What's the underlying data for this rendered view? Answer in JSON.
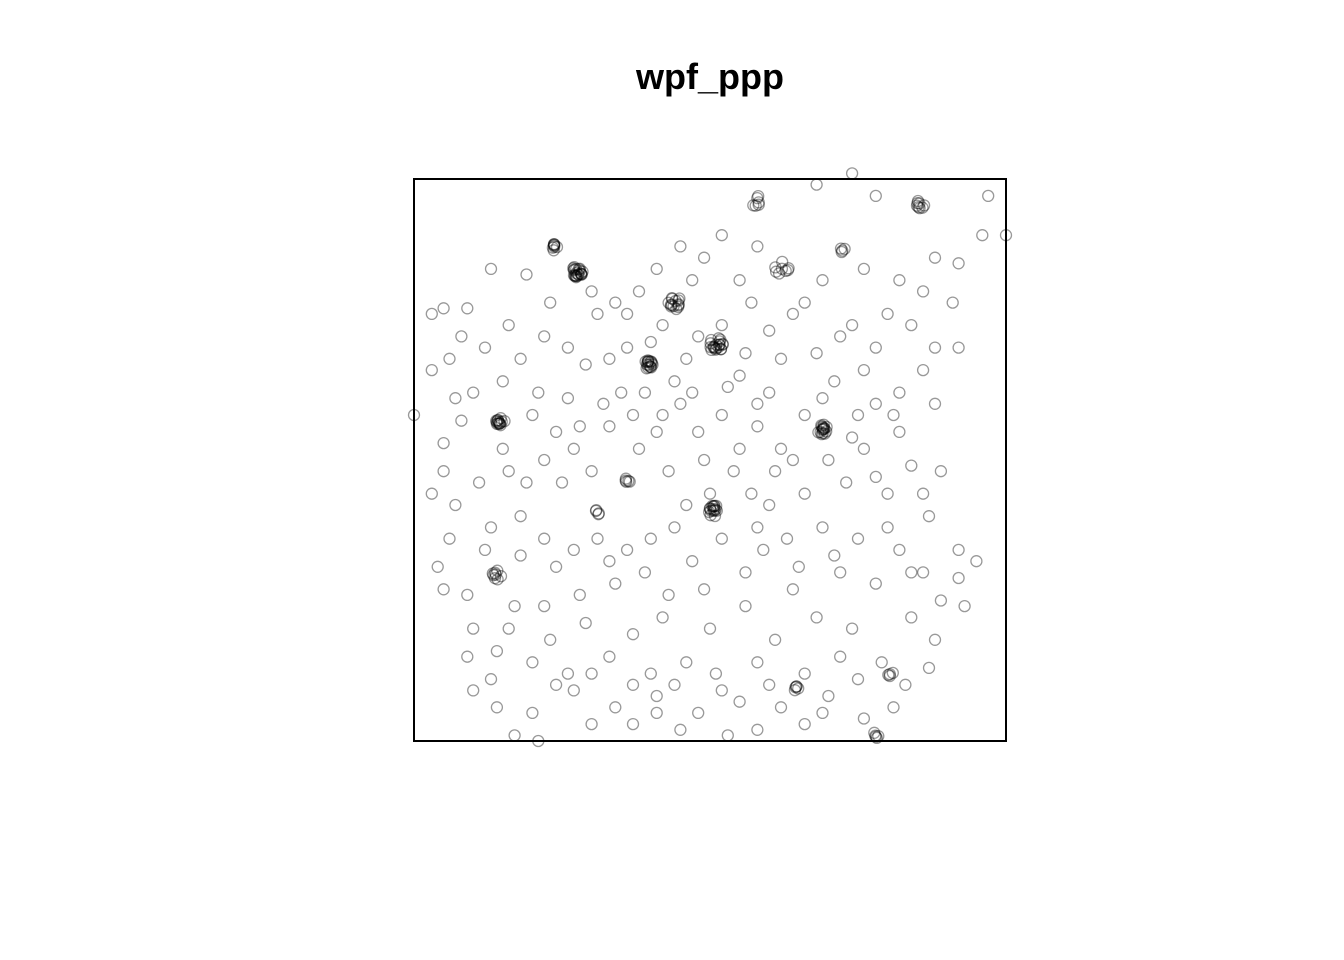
{
  "title": "wpf_ppp",
  "chart_data": {
    "type": "scatter",
    "title": "wpf_ppp",
    "xlabel": "",
    "ylabel": "",
    "window": {
      "xrange": [
        0,
        1
      ],
      "yrange": [
        0,
        1
      ]
    },
    "axes": false,
    "grid": false,
    "legend": "none",
    "marker": "open-circle",
    "marker_color": "#000000",
    "marker_opacity": 0.4,
    "clusters": [
      {
        "x": 0.275,
        "y": 0.835,
        "n": 22,
        "s": 0.01
      },
      {
        "x": 0.24,
        "y": 0.88,
        "n": 8,
        "s": 0.008
      },
      {
        "x": 0.44,
        "y": 0.78,
        "n": 14,
        "s": 0.012
      },
      {
        "x": 0.51,
        "y": 0.705,
        "n": 20,
        "s": 0.012
      },
      {
        "x": 0.395,
        "y": 0.67,
        "n": 16,
        "s": 0.008
      },
      {
        "x": 0.145,
        "y": 0.57,
        "n": 14,
        "s": 0.008
      },
      {
        "x": 0.69,
        "y": 0.555,
        "n": 16,
        "s": 0.009
      },
      {
        "x": 0.505,
        "y": 0.41,
        "n": 16,
        "s": 0.01
      },
      {
        "x": 0.14,
        "y": 0.295,
        "n": 8,
        "s": 0.008
      },
      {
        "x": 0.855,
        "y": 0.955,
        "n": 8,
        "s": 0.007
      },
      {
        "x": 0.62,
        "y": 0.845,
        "n": 8,
        "s": 0.015
      },
      {
        "x": 0.36,
        "y": 0.465,
        "n": 5,
        "s": 0.006
      },
      {
        "x": 0.31,
        "y": 0.405,
        "n": 4,
        "s": 0.006
      },
      {
        "x": 0.645,
        "y": 0.095,
        "n": 5,
        "s": 0.005
      },
      {
        "x": 0.78,
        "y": 0.01,
        "n": 5,
        "s": 0.006
      },
      {
        "x": 0.805,
        "y": 0.12,
        "n": 4,
        "s": 0.005
      },
      {
        "x": 0.58,
        "y": 0.96,
        "n": 6,
        "s": 0.012
      },
      {
        "x": 0.72,
        "y": 0.88,
        "n": 4,
        "s": 0.012
      }
    ],
    "background_points": [
      [
        0.05,
        0.77
      ],
      [
        0.09,
        0.77
      ],
      [
        0.16,
        0.74
      ],
      [
        0.23,
        0.78
      ],
      [
        0.31,
        0.76
      ],
      [
        0.36,
        0.76
      ],
      [
        0.06,
        0.68
      ],
      [
        0.12,
        0.7
      ],
      [
        0.18,
        0.68
      ],
      [
        0.21,
        0.62
      ],
      [
        0.26,
        0.7
      ],
      [
        0.29,
        0.67
      ],
      [
        0.33,
        0.68
      ],
      [
        0.47,
        0.82
      ],
      [
        0.52,
        0.74
      ],
      [
        0.57,
        0.78
      ],
      [
        0.6,
        0.73
      ],
      [
        0.66,
        0.78
      ],
      [
        0.72,
        0.72
      ],
      [
        0.78,
        0.7
      ],
      [
        0.84,
        0.74
      ],
      [
        0.88,
        0.7
      ],
      [
        0.92,
        0.85
      ],
      [
        0.96,
        0.9
      ],
      [
        1.0,
        0.9
      ],
      [
        0.97,
        0.97
      ],
      [
        0.78,
        0.97
      ],
      [
        0.74,
        1.01
      ],
      [
        0.68,
        0.99
      ],
      [
        0.05,
        0.53
      ],
      [
        0.08,
        0.57
      ],
      [
        0.1,
        0.62
      ],
      [
        0.2,
        0.58
      ],
      [
        0.24,
        0.55
      ],
      [
        0.27,
        0.52
      ],
      [
        0.33,
        0.56
      ],
      [
        0.37,
        0.58
      ],
      [
        0.41,
        0.55
      ],
      [
        0.45,
        0.6
      ],
      [
        0.48,
        0.55
      ],
      [
        0.52,
        0.58
      ],
      [
        0.55,
        0.52
      ],
      [
        0.58,
        0.56
      ],
      [
        0.62,
        0.52
      ],
      [
        0.66,
        0.58
      ],
      [
        0.74,
        0.54
      ],
      [
        0.78,
        0.6
      ],
      [
        0.82,
        0.55
      ],
      [
        0.84,
        0.49
      ],
      [
        0.78,
        0.47
      ],
      [
        0.73,
        0.46
      ],
      [
        0.66,
        0.44
      ],
      [
        0.61,
        0.48
      ],
      [
        0.57,
        0.44
      ],
      [
        0.49,
        0.5
      ],
      [
        0.43,
        0.48
      ],
      [
        0.38,
        0.52
      ],
      [
        0.3,
        0.48
      ],
      [
        0.25,
        0.46
      ],
      [
        0.19,
        0.46
      ],
      [
        0.16,
        0.48
      ],
      [
        0.11,
        0.46
      ],
      [
        0.05,
        0.48
      ],
      [
        0.13,
        0.38
      ],
      [
        0.18,
        0.4
      ],
      [
        0.22,
        0.36
      ],
      [
        0.27,
        0.34
      ],
      [
        0.31,
        0.36
      ],
      [
        0.36,
        0.34
      ],
      [
        0.4,
        0.36
      ],
      [
        0.44,
        0.38
      ],
      [
        0.52,
        0.36
      ],
      [
        0.58,
        0.38
      ],
      [
        0.63,
        0.36
      ],
      [
        0.69,
        0.38
      ],
      [
        0.75,
        0.36
      ],
      [
        0.8,
        0.38
      ],
      [
        0.87,
        0.4
      ],
      [
        0.92,
        0.34
      ],
      [
        0.95,
        0.32
      ],
      [
        0.92,
        0.29
      ],
      [
        0.86,
        0.3
      ],
      [
        0.78,
        0.28
      ],
      [
        0.72,
        0.3
      ],
      [
        0.64,
        0.27
      ],
      [
        0.56,
        0.3
      ],
      [
        0.49,
        0.27
      ],
      [
        0.43,
        0.26
      ],
      [
        0.34,
        0.28
      ],
      [
        0.28,
        0.26
      ],
      [
        0.22,
        0.24
      ],
      [
        0.17,
        0.24
      ],
      [
        0.09,
        0.26
      ],
      [
        0.1,
        0.2
      ],
      [
        0.14,
        0.16
      ],
      [
        0.2,
        0.14
      ],
      [
        0.26,
        0.12
      ],
      [
        0.33,
        0.15
      ],
      [
        0.4,
        0.12
      ],
      [
        0.46,
        0.14
      ],
      [
        0.51,
        0.12
      ],
      [
        0.58,
        0.14
      ],
      [
        0.66,
        0.12
      ],
      [
        0.72,
        0.15
      ],
      [
        0.79,
        0.14
      ],
      [
        0.83,
        0.1
      ],
      [
        0.7,
        0.08
      ],
      [
        0.62,
        0.06
      ],
      [
        0.55,
        0.07
      ],
      [
        0.48,
        0.05
      ],
      [
        0.41,
        0.08
      ],
      [
        0.34,
        0.06
      ],
      [
        0.27,
        0.09
      ],
      [
        0.2,
        0.05
      ],
      [
        0.21,
        0.0
      ],
      [
        0.17,
        0.01
      ],
      [
        0.53,
        0.01
      ],
      [
        0.41,
        0.05
      ],
      [
        0.56,
        0.24
      ],
      [
        0.5,
        0.2
      ],
      [
        0.42,
        0.22
      ],
      [
        0.37,
        0.19
      ],
      [
        0.29,
        0.21
      ],
      [
        0.23,
        0.18
      ],
      [
        0.13,
        0.11
      ],
      [
        0.09,
        0.15
      ],
      [
        0.61,
        0.18
      ],
      [
        0.68,
        0.22
      ],
      [
        0.74,
        0.2
      ],
      [
        0.84,
        0.22
      ],
      [
        0.88,
        0.18
      ],
      [
        0.81,
        0.06
      ],
      [
        0.76,
        0.04
      ],
      [
        0.66,
        0.03
      ],
      [
        0.0,
        0.58
      ],
      [
        0.03,
        0.66
      ],
      [
        0.07,
        0.61
      ],
      [
        0.15,
        0.64
      ],
      [
        0.26,
        0.61
      ],
      [
        0.35,
        0.62
      ],
      [
        0.44,
        0.64
      ],
      [
        0.55,
        0.65
      ],
      [
        0.6,
        0.62
      ],
      [
        0.71,
        0.64
      ],
      [
        0.76,
        0.66
      ],
      [
        0.82,
        0.62
      ],
      [
        0.88,
        0.6
      ],
      [
        0.86,
        0.66
      ],
      [
        0.92,
        0.7
      ],
      [
        0.88,
        0.86
      ],
      [
        0.82,
        0.82
      ],
      [
        0.76,
        0.84
      ],
      [
        0.69,
        0.82
      ],
      [
        0.64,
        0.76
      ],
      [
        0.58,
        0.88
      ],
      [
        0.52,
        0.9
      ],
      [
        0.55,
        0.82
      ],
      [
        0.49,
        0.86
      ],
      [
        0.45,
        0.88
      ],
      [
        0.41,
        0.84
      ],
      [
        0.38,
        0.8
      ],
      [
        0.34,
        0.78
      ],
      [
        0.3,
        0.8
      ],
      [
        0.19,
        0.83
      ],
      [
        0.13,
        0.84
      ],
      [
        0.03,
        0.76
      ],
      [
        0.08,
        0.72
      ],
      [
        0.22,
        0.72
      ],
      [
        0.4,
        0.71
      ],
      [
        0.46,
        0.68
      ],
      [
        0.56,
        0.69
      ],
      [
        0.62,
        0.68
      ],
      [
        0.68,
        0.69
      ],
      [
        0.74,
        0.74
      ],
      [
        0.8,
        0.76
      ],
      [
        0.86,
        0.8
      ],
      [
        0.91,
        0.78
      ],
      [
        0.5,
        0.44
      ],
      [
        0.46,
        0.42
      ],
      [
        0.54,
        0.48
      ],
      [
        0.6,
        0.42
      ],
      [
        0.64,
        0.5
      ],
      [
        0.7,
        0.5
      ],
      [
        0.76,
        0.52
      ],
      [
        0.8,
        0.44
      ],
      [
        0.86,
        0.44
      ],
      [
        0.89,
        0.48
      ],
      [
        0.82,
        0.34
      ],
      [
        0.71,
        0.33
      ],
      [
        0.65,
        0.31
      ],
      [
        0.59,
        0.34
      ],
      [
        0.47,
        0.32
      ],
      [
        0.39,
        0.3
      ],
      [
        0.33,
        0.32
      ],
      [
        0.24,
        0.31
      ],
      [
        0.18,
        0.33
      ],
      [
        0.12,
        0.34
      ],
      [
        0.06,
        0.36
      ],
      [
        0.07,
        0.42
      ],
      [
        0.03,
        0.44
      ],
      [
        0.15,
        0.52
      ],
      [
        0.22,
        0.5
      ],
      [
        0.28,
        0.56
      ],
      [
        0.32,
        0.6
      ],
      [
        0.39,
        0.62
      ],
      [
        0.42,
        0.58
      ],
      [
        0.47,
        0.62
      ],
      [
        0.53,
        0.63
      ],
      [
        0.36,
        0.7
      ],
      [
        0.42,
        0.74
      ],
      [
        0.48,
        0.72
      ],
      [
        0.58,
        0.6
      ],
      [
        0.69,
        0.61
      ],
      [
        0.75,
        0.58
      ],
      [
        0.81,
        0.58
      ],
      [
        0.84,
        0.3
      ],
      [
        0.89,
        0.25
      ],
      [
        0.93,
        0.24
      ],
      [
        0.87,
        0.13
      ],
      [
        0.75,
        0.11
      ],
      [
        0.6,
        0.1
      ],
      [
        0.52,
        0.09
      ],
      [
        0.44,
        0.1
      ],
      [
        0.37,
        0.1
      ],
      [
        0.3,
        0.12
      ],
      [
        0.24,
        0.1
      ],
      [
        0.3,
        0.03
      ],
      [
        0.37,
        0.03
      ],
      [
        0.45,
        0.02
      ],
      [
        0.58,
        0.02
      ],
      [
        0.69,
        0.05
      ],
      [
        0.16,
        0.2
      ],
      [
        0.05,
        0.27
      ],
      [
        0.04,
        0.31
      ],
      [
        0.1,
        0.09
      ],
      [
        0.14,
        0.06
      ]
    ]
  }
}
